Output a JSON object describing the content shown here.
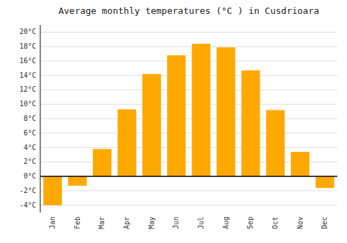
{
  "chart_data": {
    "type": "bar",
    "title": "Average monthly temperatures (°C ) in Cusdrioara",
    "categories": [
      "Jan",
      "Feb",
      "Mar",
      "Apr",
      "May",
      "Jun",
      "Jul",
      "Aug",
      "Sep",
      "Oct",
      "Nov",
      "Dec"
    ],
    "values": [
      -4.0,
      -1.3,
      3.8,
      9.3,
      14.2,
      16.8,
      18.4,
      17.9,
      14.7,
      9.2,
      3.4,
      -1.6
    ],
    "color": "#FFA800",
    "ylim": [
      -5,
      21
    ],
    "yticks": [
      {
        "value": -4,
        "label": "-4°C"
      },
      {
        "value": -2,
        "label": "-2°C"
      },
      {
        "value": 0,
        "label": "0°C"
      },
      {
        "value": 2,
        "label": "2°C"
      },
      {
        "value": 4,
        "label": "4°C"
      },
      {
        "value": 6,
        "label": "6°C"
      },
      {
        "value": 8,
        "label": "8°C"
      },
      {
        "value": 10,
        "label": "10°C"
      },
      {
        "value": 12,
        "label": "12°C"
      },
      {
        "value": 14,
        "label": "14°C"
      },
      {
        "value": 16,
        "label": "16°C"
      },
      {
        "value": 18,
        "label": "18°C"
      },
      {
        "value": 20,
        "label": "20°C"
      }
    ],
    "grid": true
  }
}
